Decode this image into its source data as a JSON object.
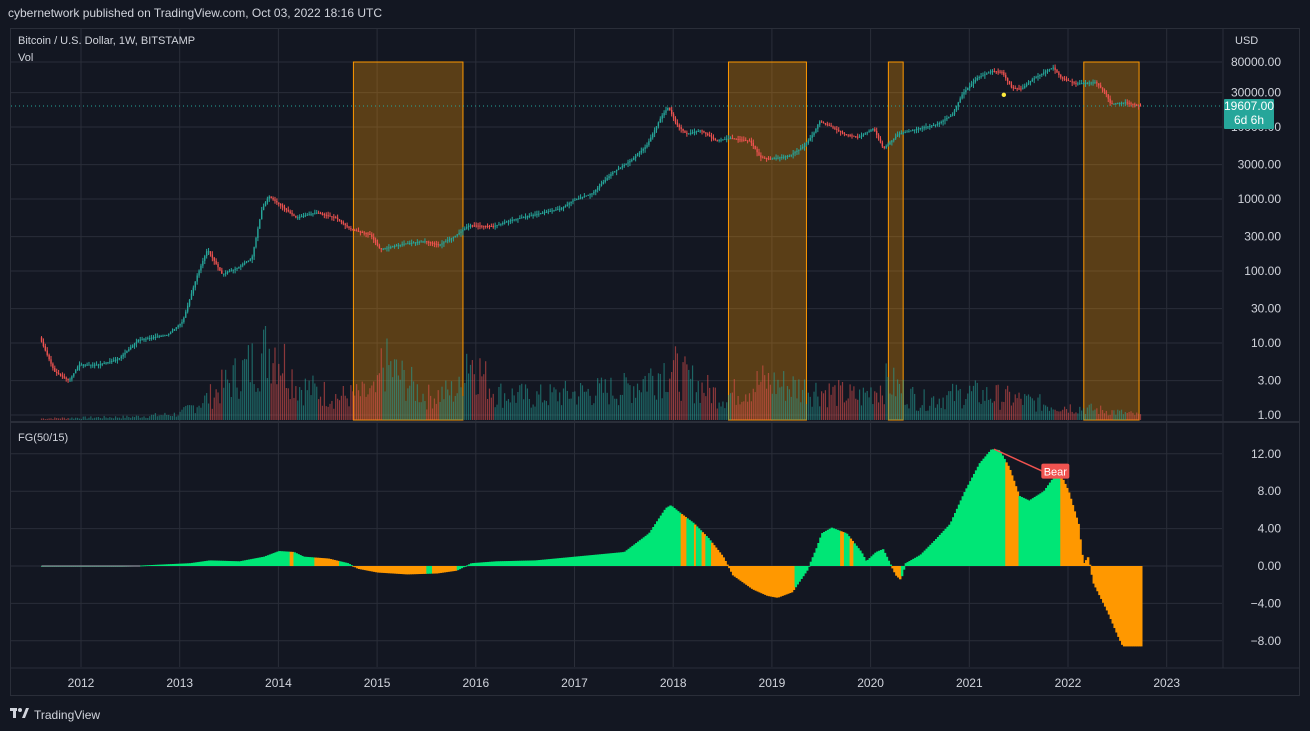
{
  "header": {
    "publish_line": "cybernetwork published on TradingView.com, Oct 03, 2022 18:16 UTC"
  },
  "footer": {
    "brand": "TradingView",
    "logo_icon": "tradingview-logo-icon"
  },
  "colors": {
    "background": "#131722",
    "grid": "#2a2e39",
    "up": "#26a69a",
    "down": "#ef5350",
    "bull": "#00e676",
    "bear": "#ff9800",
    "highlight": "#ff9800",
    "price_label": "#26a69a",
    "bear_label": "#f05350"
  },
  "chart_data": [
    {
      "type": "candlestick",
      "title": "Bitcoin / U.S. Dollar, 1W, BITSTAMP",
      "volume_label": "Vol",
      "y_axis_title": "USD",
      "y_scale": "log",
      "y_ticks": [
        1,
        3,
        10,
        30,
        100,
        300,
        1000,
        3000,
        10000,
        30000,
        80000
      ],
      "y_tick_labels": [
        "1.00",
        "3.00",
        "10.00",
        "30.00",
        "100.00",
        "300.00",
        "1000.00",
        "3000.00",
        "10000.00",
        "30000.00",
        "80000.00"
      ],
      "current_price_label": "19607.00",
      "countdown_label": "6d 6h",
      "x_tick_labels": [
        "2012",
        "2013",
        "2014",
        "2015",
        "2016",
        "2017",
        "2018",
        "2019",
        "2020",
        "2021",
        "2022",
        "2023"
      ],
      "price_path": [
        [
          2011.6,
          12
        ],
        [
          2011.75,
          4
        ],
        [
          2011.9,
          3
        ],
        [
          2012.0,
          5
        ],
        [
          2012.2,
          5
        ],
        [
          2012.4,
          6
        ],
        [
          2012.6,
          11
        ],
        [
          2012.9,
          13
        ],
        [
          2013.05,
          20
        ],
        [
          2013.2,
          90
        ],
        [
          2013.3,
          200
        ],
        [
          2013.45,
          90
        ],
        [
          2013.6,
          110
        ],
        [
          2013.75,
          150
        ],
        [
          2013.85,
          700
        ],
        [
          2013.92,
          1100
        ],
        [
          2014.05,
          800
        ],
        [
          2014.2,
          550
        ],
        [
          2014.4,
          650
        ],
        [
          2014.6,
          550
        ],
        [
          2014.75,
          380
        ],
        [
          2014.95,
          320
        ],
        [
          2015.05,
          200
        ],
        [
          2015.3,
          240
        ],
        [
          2015.5,
          260
        ],
        [
          2015.65,
          230
        ],
        [
          2015.8,
          300
        ],
        [
          2015.95,
          430
        ],
        [
          2016.2,
          420
        ],
        [
          2016.4,
          520
        ],
        [
          2016.6,
          600
        ],
        [
          2016.9,
          750
        ],
        [
          2017.0,
          950
        ],
        [
          2017.2,
          1200
        ],
        [
          2017.4,
          2300
        ],
        [
          2017.6,
          3500
        ],
        [
          2017.75,
          5500
        ],
        [
          2017.9,
          14000
        ],
        [
          2017.97,
          19000
        ],
        [
          2018.05,
          11000
        ],
        [
          2018.15,
          8000
        ],
        [
          2018.3,
          9000
        ],
        [
          2018.45,
          6500
        ],
        [
          2018.6,
          7000
        ],
        [
          2018.8,
          6400
        ],
        [
          2018.9,
          3800
        ],
        [
          2019.0,
          3600
        ],
        [
          2019.2,
          4000
        ],
        [
          2019.35,
          5500
        ],
        [
          2019.45,
          8500
        ],
        [
          2019.5,
          12000
        ],
        [
          2019.6,
          10500
        ],
        [
          2019.75,
          8000
        ],
        [
          2019.9,
          7200
        ],
        [
          2020.05,
          9500
        ],
        [
          2020.15,
          5000
        ],
        [
          2020.3,
          8000
        ],
        [
          2020.5,
          9500
        ],
        [
          2020.7,
          11000
        ],
        [
          2020.85,
          15000
        ],
        [
          2020.95,
          29000
        ],
        [
          2021.1,
          48000
        ],
        [
          2021.25,
          60000
        ],
        [
          2021.35,
          58000
        ],
        [
          2021.45,
          35000
        ],
        [
          2021.55,
          34000
        ],
        [
          2021.65,
          45000
        ],
        [
          2021.8,
          60000
        ],
        [
          2021.87,
          67000
        ],
        [
          2021.95,
          48000
        ],
        [
          2022.1,
          40000
        ],
        [
          2022.3,
          42000
        ],
        [
          2022.4,
          30000
        ],
        [
          2022.45,
          21000
        ],
        [
          2022.6,
          22000
        ],
        [
          2022.75,
          19607
        ]
      ],
      "volume_scale_max": 100,
      "volume_path": [
        [
          2011.6,
          2
        ],
        [
          2012.0,
          3
        ],
        [
          2012.5,
          4
        ],
        [
          2013.0,
          8
        ],
        [
          2013.3,
          30
        ],
        [
          2013.8,
          80
        ],
        [
          2013.95,
          100
        ],
        [
          2014.2,
          45
        ],
        [
          2014.6,
          30
        ],
        [
          2015.0,
          35
        ],
        [
          2015.05,
          75
        ],
        [
          2015.5,
          30
        ],
        [
          2015.85,
          40
        ],
        [
          2015.9,
          90
        ],
        [
          2016.2,
          35
        ],
        [
          2016.6,
          30
        ],
        [
          2017.0,
          35
        ],
        [
          2017.5,
          40
        ],
        [
          2017.97,
          70
        ],
        [
          2018.1,
          55
        ],
        [
          2018.5,
          30
        ],
        [
          2018.9,
          50
        ],
        [
          2019.4,
          40
        ],
        [
          2019.9,
          30
        ],
        [
          2020.18,
          50
        ],
        [
          2020.5,
          25
        ],
        [
          2021.0,
          35
        ],
        [
          2021.35,
          30
        ],
        [
          2021.8,
          20
        ],
        [
          2022.4,
          12
        ],
        [
          2022.75,
          6
        ]
      ],
      "highlight_ranges": [
        [
          2014.76,
          2015.87
        ],
        [
          2018.56,
          2019.35
        ],
        [
          2020.18,
          2020.33
        ],
        [
          2022.16,
          2022.72
        ]
      ],
      "markers": [
        {
          "x": 2021.35,
          "y": 28000,
          "color": "#ffeb3b"
        }
      ]
    },
    {
      "type": "histogram",
      "title": "FG(50/15)",
      "y_ticks": [
        12,
        8,
        4,
        0,
        -4,
        -8
      ],
      "y_tick_labels": [
        "12.00",
        "8.00",
        "4.00",
        "0.00",
        "−4.00",
        "−8.00"
      ],
      "annotation": "Bear",
      "series": [
        {
          "name": "FG",
          "points": [
            [
              2011.6,
              0
            ],
            [
              2012.4,
              0
            ],
            [
              2012.6,
              0.05
            ],
            [
              2012.9,
              0.2
            ],
            [
              2013.1,
              0.3
            ],
            [
              2013.3,
              0.6
            ],
            [
              2013.6,
              0.5
            ],
            [
              2013.85,
              1.0
            ],
            [
              2014.0,
              1.6
            ],
            [
              2014.15,
              1.5
            ],
            [
              2014.25,
              1.0
            ],
            [
              2014.5,
              0.8
            ],
            [
              2014.7,
              0.3
            ],
            [
              2014.8,
              -0.3
            ],
            [
              2015.0,
              -0.7
            ],
            [
              2015.3,
              -0.9
            ],
            [
              2015.6,
              -0.8
            ],
            [
              2015.8,
              -0.5
            ],
            [
              2015.95,
              0.3
            ],
            [
              2016.2,
              0.5
            ],
            [
              2016.6,
              0.6
            ],
            [
              2017.0,
              1.0
            ],
            [
              2017.5,
              1.5
            ],
            [
              2017.75,
              3.5
            ],
            [
              2017.92,
              6.2
            ],
            [
              2017.97,
              6.5
            ],
            [
              2018.05,
              5.8
            ],
            [
              2018.2,
              4.6
            ],
            [
              2018.35,
              3.0
            ],
            [
              2018.5,
              1.0
            ],
            [
              2018.6,
              -1.0
            ],
            [
              2018.8,
              -2.5
            ],
            [
              2018.95,
              -3.2
            ],
            [
              2019.05,
              -3.4
            ],
            [
              2019.2,
              -2.8
            ],
            [
              2019.35,
              -0.5
            ],
            [
              2019.45,
              2.0
            ],
            [
              2019.5,
              3.5
            ],
            [
              2019.6,
              4.1
            ],
            [
              2019.75,
              3.5
            ],
            [
              2019.9,
              1.5
            ],
            [
              2019.95,
              0.5
            ],
            [
              2020.05,
              1.5
            ],
            [
              2020.12,
              1.8
            ],
            [
              2020.18,
              0.5
            ],
            [
              2020.25,
              -1.0
            ],
            [
              2020.3,
              -1.5
            ],
            [
              2020.35,
              0.3
            ],
            [
              2020.5,
              1.2
            ],
            [
              2020.65,
              2.8
            ],
            [
              2020.8,
              4.5
            ],
            [
              2020.95,
              8.0
            ],
            [
              2021.1,
              11.0
            ],
            [
              2021.22,
              12.5
            ],
            [
              2021.3,
              12.4
            ],
            [
              2021.4,
              10.5
            ],
            [
              2021.5,
              7.5
            ],
            [
              2021.6,
              7.0
            ],
            [
              2021.75,
              8.0
            ],
            [
              2021.85,
              9.5
            ],
            [
              2021.92,
              9.8
            ],
            [
              2022.0,
              8.0
            ],
            [
              2022.1,
              4.5
            ],
            [
              2022.15,
              0.2
            ],
            [
              2022.2,
              1.0
            ],
            [
              2022.25,
              -1.8
            ],
            [
              2022.4,
              -5.0
            ],
            [
              2022.5,
              -7.5
            ],
            [
              2022.55,
              -8.6
            ],
            [
              2022.75,
              -8.6
            ]
          ]
        }
      ],
      "bear_ranges": [
        [
          2014.1,
          2014.15
        ],
        [
          2014.35,
          2014.6
        ],
        [
          2014.75,
          2015.5
        ],
        [
          2015.55,
          2015.8
        ],
        [
          2018.08,
          2018.12
        ],
        [
          2018.2,
          2018.22
        ],
        [
          2018.28,
          2018.32
        ],
        [
          2018.38,
          2019.22
        ],
        [
          2019.68,
          2019.72
        ],
        [
          2019.78,
          2019.82
        ],
        [
          2020.2,
          2020.3
        ],
        [
          2021.35,
          2021.5
        ],
        [
          2021.92,
          2022.75
        ]
      ]
    }
  ]
}
